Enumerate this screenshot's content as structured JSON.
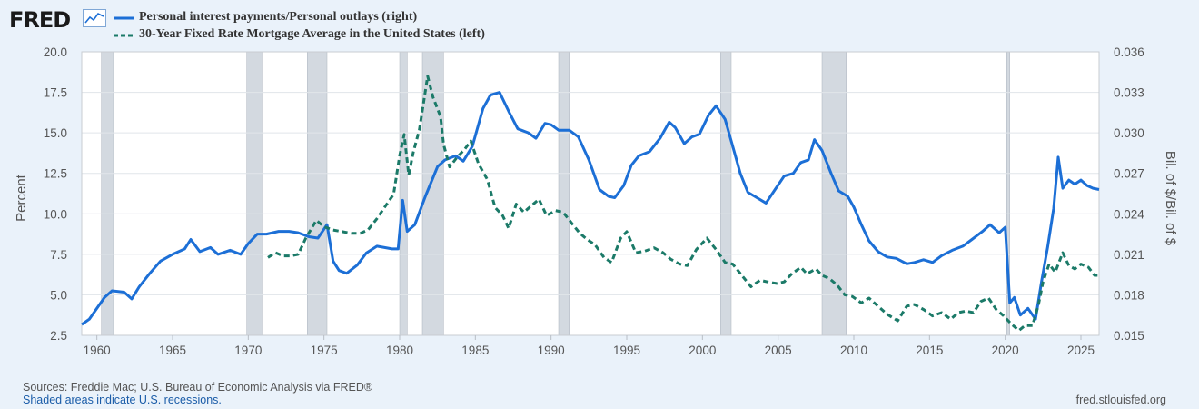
{
  "brand": {
    "logo_text": "FRED"
  },
  "colors": {
    "series1": "#1c6fd6",
    "series2": "#1b7a68",
    "recession": "#d3d9e0",
    "background": "#eaf2fa"
  },
  "legend": {
    "items": [
      {
        "label": "Personal interest payments/Personal outlays (right)",
        "style": "solid"
      },
      {
        "label": "30-Year Fixed Rate Mortgage Average in the United States (left)",
        "style": "dashed"
      }
    ]
  },
  "footer": {
    "sources": "Sources: Freddie Mac; U.S. Bureau of Economic Analysis via FRED®",
    "recessions_note": "Shaded areas indicate U.S. recessions.",
    "url": "fred.stlouisfed.org"
  },
  "chart_data": {
    "type": "line",
    "xlim": [
      1959,
      2026.2
    ],
    "ylim_left": [
      2.5,
      20.0
    ],
    "ylim_right": [
      0.015,
      0.036
    ],
    "x_ticks": [
      "1960",
      "1965",
      "1970",
      "1975",
      "1980",
      "1985",
      "1990",
      "1995",
      "2000",
      "2005",
      "2010",
      "2015",
      "2020",
      "2025"
    ],
    "y_left_ticks": [
      "2.5",
      "5.0",
      "7.5",
      "10.0",
      "12.5",
      "15.0",
      "17.5",
      "20.0"
    ],
    "y_right_ticks": [
      "0.015",
      "0.018",
      "0.021",
      "0.024",
      "0.027",
      "0.030",
      "0.033",
      "0.036"
    ],
    "ylabel_left": "Percent",
    "ylabel_right": "Bil. of $/Bil. of $",
    "grid": "horizontal",
    "recessions": [
      [
        1960.3,
        1961.1
      ],
      [
        1969.9,
        1970.9
      ],
      [
        1973.9,
        1975.2
      ],
      [
        1980.0,
        1980.5
      ],
      [
        1981.5,
        1982.9
      ],
      [
        1990.5,
        1991.2
      ],
      [
        2001.2,
        2001.9
      ],
      [
        2007.9,
        2009.5
      ],
      [
        2020.1,
        2020.3
      ]
    ],
    "series": [
      {
        "name": "Personal interest payments/Personal outlays (right)",
        "axis": "right",
        "points": [
          [
            1959.0,
            0.0158
          ],
          [
            1959.5,
            0.0162
          ],
          [
            1960.0,
            0.017
          ],
          [
            1960.5,
            0.0178
          ],
          [
            1961.0,
            0.0183
          ],
          [
            1961.8,
            0.0182
          ],
          [
            1962.3,
            0.0177
          ],
          [
            1962.8,
            0.0186
          ],
          [
            1963.5,
            0.0196
          ],
          [
            1964.2,
            0.0205
          ],
          [
            1965.0,
            0.021
          ],
          [
            1965.8,
            0.0214
          ],
          [
            1966.2,
            0.0221
          ],
          [
            1966.8,
            0.0212
          ],
          [
            1967.5,
            0.0215
          ],
          [
            1968.0,
            0.021
          ],
          [
            1968.8,
            0.0213
          ],
          [
            1969.5,
            0.021
          ],
          [
            1970.0,
            0.0218
          ],
          [
            1970.6,
            0.0225
          ],
          [
            1971.2,
            0.0225
          ],
          [
            1972.0,
            0.0227
          ],
          [
            1972.7,
            0.0227
          ],
          [
            1973.3,
            0.0226
          ],
          [
            1974.0,
            0.0223
          ],
          [
            1974.6,
            0.0222
          ],
          [
            1975.2,
            0.0232
          ],
          [
            1975.6,
            0.0205
          ],
          [
            1976.0,
            0.0198
          ],
          [
            1976.5,
            0.0196
          ],
          [
            1977.2,
            0.0202
          ],
          [
            1977.8,
            0.0211
          ],
          [
            1978.5,
            0.0216
          ],
          [
            1979.5,
            0.0214
          ],
          [
            1979.9,
            0.0214
          ],
          [
            1980.2,
            0.025
          ],
          [
            1980.5,
            0.0227
          ],
          [
            1981.0,
            0.0232
          ],
          [
            1981.7,
            0.0253
          ],
          [
            1982.5,
            0.0275
          ],
          [
            1983.0,
            0.028
          ],
          [
            1983.7,
            0.0283
          ],
          [
            1984.2,
            0.0279
          ],
          [
            1984.8,
            0.029
          ],
          [
            1985.5,
            0.0318
          ],
          [
            1986.0,
            0.0328
          ],
          [
            1986.6,
            0.033
          ],
          [
            1987.2,
            0.0316
          ],
          [
            1987.8,
            0.0303
          ],
          [
            1988.5,
            0.03
          ],
          [
            1989.0,
            0.0296
          ],
          [
            1989.6,
            0.0307
          ],
          [
            1990.0,
            0.0306
          ],
          [
            1990.5,
            0.0302
          ],
          [
            1991.2,
            0.0302
          ],
          [
            1991.8,
            0.0297
          ],
          [
            1992.5,
            0.028
          ],
          [
            1993.2,
            0.0258
          ],
          [
            1993.8,
            0.0253
          ],
          [
            1994.2,
            0.0252
          ],
          [
            1994.8,
            0.0261
          ],
          [
            1995.3,
            0.0276
          ],
          [
            1995.8,
            0.0283
          ],
          [
            1996.5,
            0.0286
          ],
          [
            1997.2,
            0.0296
          ],
          [
            1997.8,
            0.0308
          ],
          [
            1998.2,
            0.0304
          ],
          [
            1998.8,
            0.0292
          ],
          [
            1999.3,
            0.0297
          ],
          [
            1999.8,
            0.0299
          ],
          [
            2000.4,
            0.0313
          ],
          [
            2000.9,
            0.032
          ],
          [
            2001.5,
            0.031
          ],
          [
            2002.0,
            0.029
          ],
          [
            2002.5,
            0.027
          ],
          [
            2003.0,
            0.0256
          ],
          [
            2003.6,
            0.0252
          ],
          [
            2004.2,
            0.0248
          ],
          [
            2004.8,
            0.0258
          ],
          [
            2005.4,
            0.0268
          ],
          [
            2006.0,
            0.027
          ],
          [
            2006.5,
            0.0278
          ],
          [
            2007.0,
            0.028
          ],
          [
            2007.4,
            0.0295
          ],
          [
            2007.9,
            0.0287
          ],
          [
            2008.5,
            0.027
          ],
          [
            2009.0,
            0.0257
          ],
          [
            2009.6,
            0.0253
          ],
          [
            2010.0,
            0.0245
          ],
          [
            2010.5,
            0.0232
          ],
          [
            2011.0,
            0.022
          ],
          [
            2011.6,
            0.0212
          ],
          [
            2012.2,
            0.0208
          ],
          [
            2012.8,
            0.0207
          ],
          [
            2013.5,
            0.0203
          ],
          [
            2014.0,
            0.0204
          ],
          [
            2014.6,
            0.0206
          ],
          [
            2015.2,
            0.0204
          ],
          [
            2015.8,
            0.0209
          ],
          [
            2016.5,
            0.0213
          ],
          [
            2017.2,
            0.0216
          ],
          [
            2017.8,
            0.0221
          ],
          [
            2018.5,
            0.0227
          ],
          [
            2019.0,
            0.0232
          ],
          [
            2019.6,
            0.0226
          ],
          [
            2020.0,
            0.023
          ],
          [
            2020.3,
            0.0174
          ],
          [
            2020.6,
            0.0178
          ],
          [
            2021.0,
            0.0165
          ],
          [
            2021.5,
            0.017
          ],
          [
            2022.0,
            0.0162
          ],
          [
            2022.4,
            0.019
          ],
          [
            2022.8,
            0.0215
          ],
          [
            2023.2,
            0.0244
          ],
          [
            2023.5,
            0.0282
          ],
          [
            2023.8,
            0.0259
          ],
          [
            2024.2,
            0.0265
          ],
          [
            2024.6,
            0.0262
          ],
          [
            2025.0,
            0.0265
          ],
          [
            2025.4,
            0.0261
          ],
          [
            2025.8,
            0.0259
          ],
          [
            2026.2,
            0.0258
          ]
        ]
      },
      {
        "name": "30-Year Fixed Rate Mortgage Average in the United States (left)",
        "axis": "left",
        "points": [
          [
            1971.3,
            7.3
          ],
          [
            1971.8,
            7.6
          ],
          [
            1972.3,
            7.4
          ],
          [
            1972.8,
            7.4
          ],
          [
            1973.3,
            7.5
          ],
          [
            1973.8,
            8.5
          ],
          [
            1974.5,
            9.6
          ],
          [
            1975.0,
            9.2
          ],
          [
            1975.6,
            9.0
          ],
          [
            1976.2,
            8.9
          ],
          [
            1976.8,
            8.8
          ],
          [
            1977.4,
            8.8
          ],
          [
            1977.9,
            9.0
          ],
          [
            1978.5,
            9.7
          ],
          [
            1979.0,
            10.4
          ],
          [
            1979.6,
            11.2
          ],
          [
            1980.0,
            13.6
          ],
          [
            1980.3,
            14.9
          ],
          [
            1980.6,
            12.4
          ],
          [
            1980.9,
            13.8
          ],
          [
            1981.3,
            15.2
          ],
          [
            1981.6,
            17.0
          ],
          [
            1981.85,
            18.5
          ],
          [
            1982.2,
            17.2
          ],
          [
            1982.7,
            16.0
          ],
          [
            1982.9,
            14.3
          ],
          [
            1983.3,
            12.9
          ],
          [
            1983.8,
            13.5
          ],
          [
            1984.3,
            14.0
          ],
          [
            1984.7,
            14.5
          ],
          [
            1985.2,
            13.1
          ],
          [
            1985.8,
            12.1
          ],
          [
            1986.3,
            10.4
          ],
          [
            1986.8,
            9.9
          ],
          [
            1987.2,
            9.1
          ],
          [
            1987.7,
            10.6
          ],
          [
            1988.2,
            10.1
          ],
          [
            1988.7,
            10.5
          ],
          [
            1989.2,
            10.9
          ],
          [
            1989.7,
            9.9
          ],
          [
            1990.3,
            10.2
          ],
          [
            1990.8,
            10.1
          ],
          [
            1991.3,
            9.5
          ],
          [
            1991.9,
            8.8
          ],
          [
            1992.4,
            8.4
          ],
          [
            1992.9,
            8.1
          ],
          [
            1993.5,
            7.3
          ],
          [
            1994.0,
            7.0
          ],
          [
            1994.6,
            8.5
          ],
          [
            1995.0,
            8.9
          ],
          [
            1995.6,
            7.6
          ],
          [
            1996.2,
            7.7
          ],
          [
            1996.8,
            7.9
          ],
          [
            1997.4,
            7.6
          ],
          [
            1997.9,
            7.2
          ],
          [
            1998.5,
            6.9
          ],
          [
            1999.0,
            6.8
          ],
          [
            1999.6,
            7.8
          ],
          [
            2000.3,
            8.5
          ],
          [
            2000.9,
            7.8
          ],
          [
            2001.5,
            7.0
          ],
          [
            2002.0,
            6.9
          ],
          [
            2002.6,
            6.2
          ],
          [
            2003.2,
            5.5
          ],
          [
            2003.8,
            5.9
          ],
          [
            2004.3,
            5.8
          ],
          [
            2004.9,
            5.7
          ],
          [
            2005.4,
            5.8
          ],
          [
            2005.9,
            6.3
          ],
          [
            2006.5,
            6.7
          ],
          [
            2006.9,
            6.3
          ],
          [
            2007.5,
            6.6
          ],
          [
            2007.9,
            6.2
          ],
          [
            2008.4,
            6.0
          ],
          [
            2008.9,
            5.6
          ],
          [
            2009.4,
            5.0
          ],
          [
            2009.9,
            4.9
          ],
          [
            2010.5,
            4.5
          ],
          [
            2011.0,
            4.8
          ],
          [
            2011.6,
            4.3
          ],
          [
            2012.2,
            3.8
          ],
          [
            2012.9,
            3.4
          ],
          [
            2013.5,
            4.3
          ],
          [
            2014.0,
            4.4
          ],
          [
            2014.6,
            4.1
          ],
          [
            2015.2,
            3.7
          ],
          [
            2015.8,
            3.9
          ],
          [
            2016.4,
            3.5
          ],
          [
            2016.9,
            3.9
          ],
          [
            2017.4,
            4.0
          ],
          [
            2017.9,
            3.9
          ],
          [
            2018.4,
            4.6
          ],
          [
            2018.9,
            4.8
          ],
          [
            2019.4,
            4.1
          ],
          [
            2019.9,
            3.7
          ],
          [
            2020.4,
            3.2
          ],
          [
            2020.9,
            2.8
          ],
          [
            2021.3,
            3.1
          ],
          [
            2021.8,
            3.1
          ],
          [
            2022.2,
            4.4
          ],
          [
            2022.5,
            5.8
          ],
          [
            2022.9,
            6.9
          ],
          [
            2023.3,
            6.4
          ],
          [
            2023.8,
            7.6
          ],
          [
            2024.2,
            6.8
          ],
          [
            2024.6,
            6.6
          ],
          [
            2025.0,
            6.9
          ],
          [
            2025.5,
            6.7
          ],
          [
            2025.9,
            6.2
          ],
          [
            2026.1,
            6.2
          ]
        ]
      }
    ]
  }
}
